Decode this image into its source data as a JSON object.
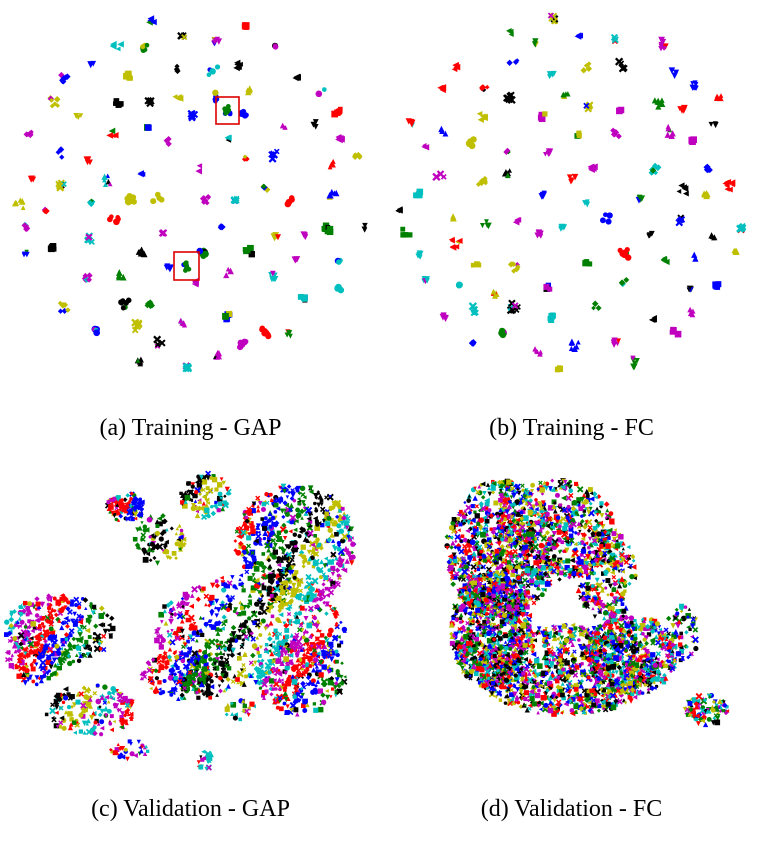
{
  "palette": [
    "#ff0000",
    "#0000ff",
    "#008000",
    "#000000",
    "#bfbf00",
    "#00bfbf",
    "#bf00bf"
  ],
  "markers": [
    "circle",
    "square",
    "triangle",
    "triangle-down",
    "cross",
    "tri-left",
    "diamond"
  ],
  "chart_data": [
    {
      "type": "scatter",
      "panel": "a",
      "caption": "(a) Training - GAP",
      "description": "t-SNE of training features (GAP): many small, tight, well separated clusters",
      "highlight_boxes": 2,
      "cluster_count": 90
    },
    {
      "type": "scatter",
      "panel": "b",
      "caption": "(b) Training - FC",
      "description": "t-SNE of training features (FC): many small, tight, well separated clusters",
      "highlight_boxes": 0,
      "cluster_count": 90
    },
    {
      "type": "scatter",
      "panel": "c",
      "caption": "(c) Validation - GAP",
      "description": "t-SNE of validation features (GAP): spread, partially grouped points",
      "highlight_boxes": 0
    },
    {
      "type": "scatter",
      "panel": "d",
      "caption": "(d) Validation - FC",
      "description": "t-SNE of validation features (FC): dense, heavily mixed mass",
      "highlight_boxes": 0
    }
  ]
}
